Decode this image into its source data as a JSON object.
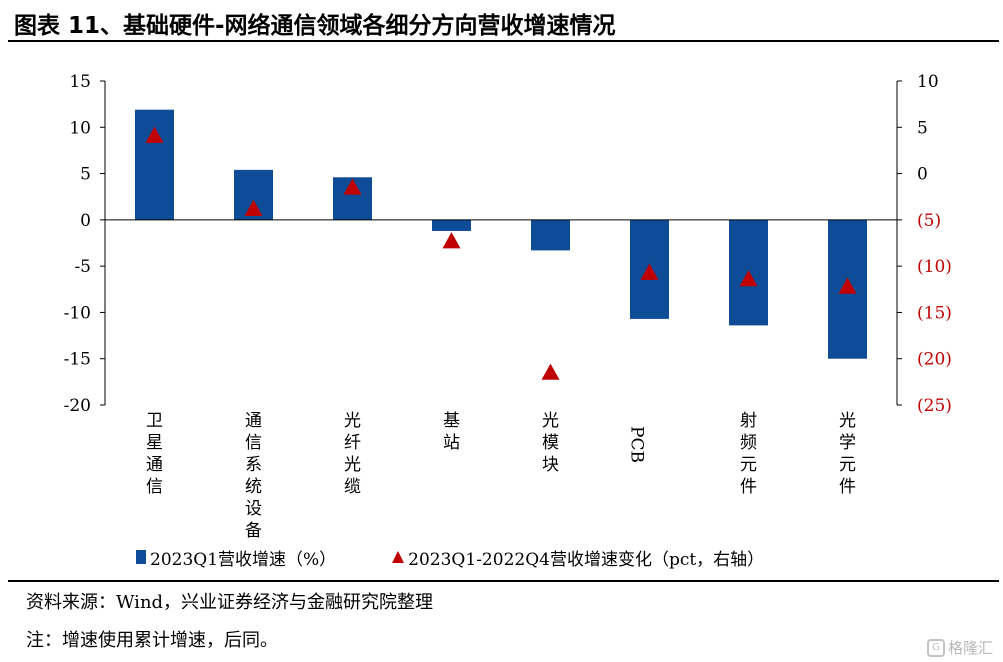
{
  "title": "图表 11、基础硬件-网络通信领域各细分方向营收增速情况",
  "chart_data": {
    "type": "bar",
    "categories": [
      "卫星通信",
      "通信系统设备",
      "光纤光缆",
      "基站",
      "光模块",
      "PCB",
      "射频元件",
      "光学元件"
    ],
    "series": [
      {
        "name": "2023Q1营收增速（%）",
        "type": "bar",
        "axis": "left",
        "color": "#0F4C97",
        "values": [
          11.9,
          5.4,
          4.6,
          -1.2,
          -3.3,
          -10.7,
          -11.4,
          -15.0
        ]
      },
      {
        "name": "2023Q1-2022Q4营收增速变化（pct，右轴）",
        "type": "scatter",
        "marker": "triangle",
        "axis": "right",
        "color": "#C00000",
        "values": [
          4.1,
          -3.8,
          -1.5,
          -7.3,
          -21.5,
          -10.7,
          -11.4,
          -12.2
        ]
      }
    ],
    "y_left": {
      "ylim": [
        -20,
        15
      ],
      "ticks": [
        15,
        10,
        5,
        0,
        -5,
        -10,
        -15,
        -20
      ],
      "tick_labels": [
        "15",
        "10",
        "5",
        "0",
        "-5",
        "-10",
        "-15",
        "-20"
      ]
    },
    "y_right": {
      "ylim": [
        -25,
        10
      ],
      "ticks": [
        10,
        5,
        0,
        -5,
        -10,
        -15,
        -20,
        -25
      ],
      "tick_labels": [
        "10",
        "5",
        "0",
        "(5)",
        "(10)",
        "(15)",
        "(20)",
        "(25)"
      ],
      "negative_color": "#C00000"
    },
    "xlabel": "",
    "ylabel": "",
    "grid": false,
    "legend": "bottom"
  },
  "legend": {
    "bar_label": "2023Q1营收增速（%）",
    "marker_label": "2023Q1-2022Q4营收增速变化（pct，右轴）"
  },
  "source": "资料来源：Wind，兴业证券经济与金融研究院整理",
  "note": "注：增速使用累计增速，后同。",
  "watermark": "格隆汇"
}
